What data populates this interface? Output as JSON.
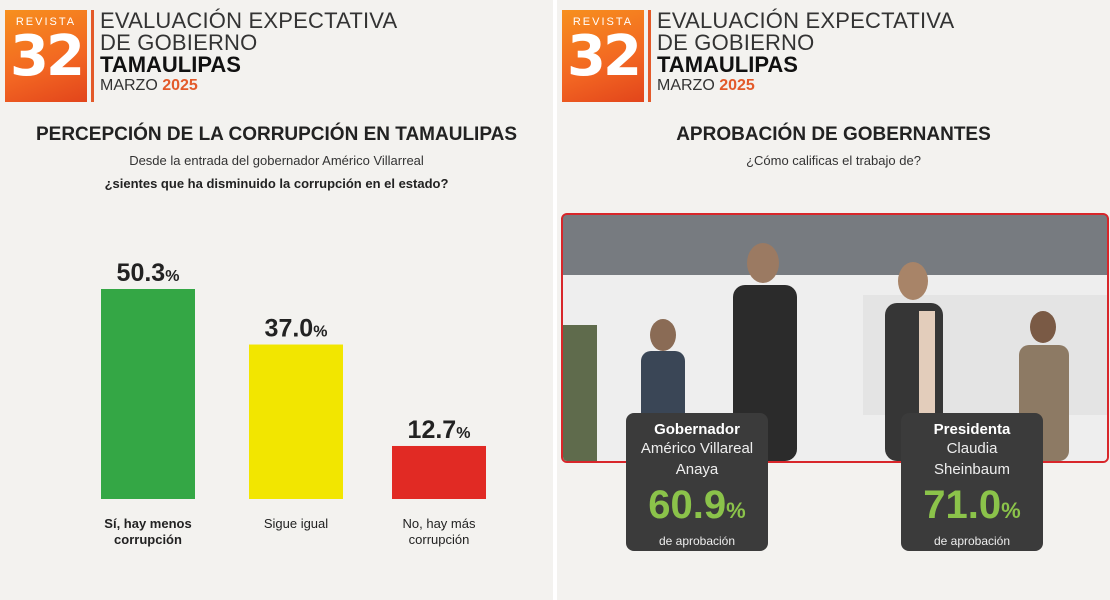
{
  "header": {
    "logo_top": "REVISTA",
    "logo_num": "32",
    "line1": "EVALUACIÓN EXPECTATIVA",
    "line2": "DE GOBIERNO",
    "line3": "TAMAULIPAS",
    "month": "MARZO",
    "year": "2025"
  },
  "left": {
    "title": "PERCEPCIÓN DE LA CORRUPCIÓN EN TAMAULIPAS",
    "subtitle": "Desde la entrada del gobernador Américo Villarreal",
    "question": "¿sientes que ha disminuido la corrupción en el estado?"
  },
  "right": {
    "title": "APROBACIÓN DE GOBERNANTES",
    "subtitle": "¿Cómo calificas el trabajo de?",
    "cards": [
      {
        "role": "Gobernador",
        "name1": "Américo Villareal",
        "name2": "Anaya",
        "value": "60.9",
        "pct": "%",
        "foot": "de aprobación"
      },
      {
        "role": "Presidenta",
        "name1": "Claudia",
        "name2": "Sheinbaum",
        "value": "71.0",
        "pct": "%",
        "foot": "de aprobación"
      }
    ]
  },
  "chart_data": [
    {
      "type": "bar",
      "title": "PERCEPCIÓN DE LA CORRUPCIÓN EN TAMAULIPAS",
      "categories": [
        [
          "Sí, hay menos",
          "corrupción"
        ],
        [
          "Sigue igual"
        ],
        [
          "No, hay más",
          "corrupción"
        ]
      ],
      "values": [
        50.3,
        37.0,
        12.7
      ],
      "labels": [
        "50.3",
        "37.0",
        "12.7"
      ],
      "unit": "%",
      "colors": [
        "#34a745",
        "#f2e600",
        "#e12a24"
      ]
    },
    {
      "type": "bar",
      "title": "APROBACIÓN DE GOBERNANTES",
      "categories": [
        "Gobernador Américo Villareal Anaya",
        "Presidenta Claudia Sheinbaum"
      ],
      "values": [
        60.9,
        71.0
      ],
      "unit": "%"
    }
  ]
}
